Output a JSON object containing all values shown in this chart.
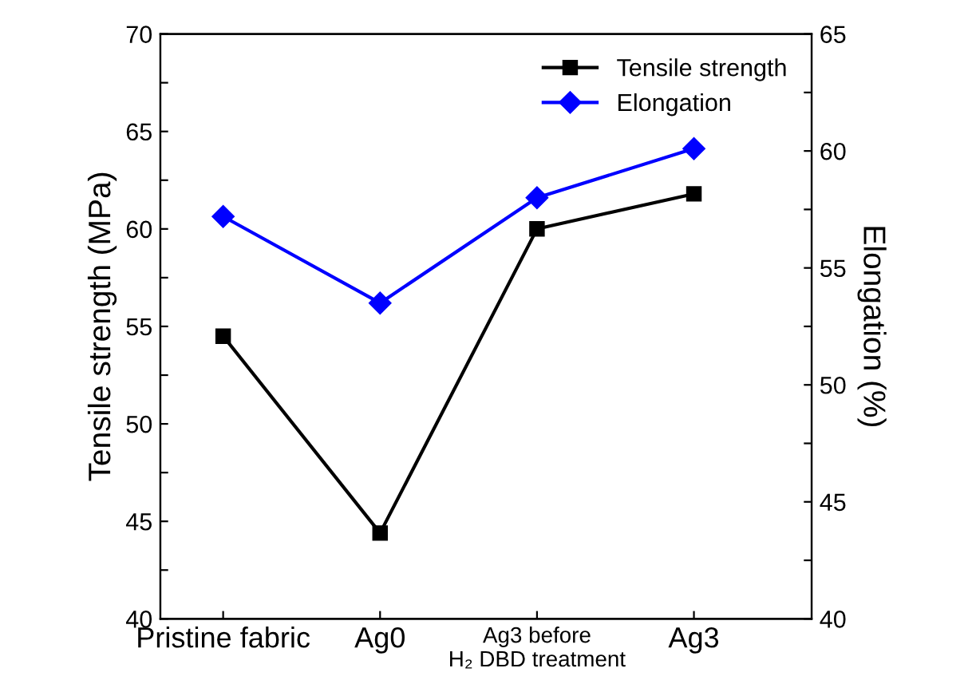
{
  "chart_data": {
    "type": "line",
    "ylabel": "Tensile strength (MPa)",
    "y2label": "Elongation (%)",
    "categories": [
      "Pristine fabric",
      "Ag0",
      "Ag3 before\nH₂ DBD treatment",
      "Ag3"
    ],
    "series": [
      {
        "name": "Tensile strength",
        "color": "#000000",
        "marker": "square",
        "values": [
          54.5,
          44.4,
          60.0,
          61.8
        ]
      },
      {
        "name": "Elongation",
        "color": "#0000ff",
        "marker": "diamond",
        "axis": "y2",
        "values": [
          57.2,
          53.5,
          58.0,
          60.1
        ]
      }
    ],
    "ylim": [
      40,
      70
    ],
    "yticks": [
      40,
      {
        "value": 42.5,
        "label": null
      },
      45,
      {
        "value": 47.5,
        "label": null
      },
      50,
      {
        "value": 52.5,
        "label": null
      },
      55,
      {
        "value": 57.5,
        "label": null
      },
      60,
      {
        "value": 62.5,
        "label": null
      },
      65,
      {
        "value": 67.5,
        "label": null
      },
      70
    ],
    "y2lim": [
      40,
      65
    ],
    "y2ticks": [
      40,
      {
        "value": 42.5,
        "label": null
      },
      45,
      {
        "value": 47.5,
        "label": null
      },
      50,
      {
        "value": 52.5,
        "label": null
      },
      55,
      {
        "value": 57.5,
        "label": null
      },
      60,
      {
        "value": 62.5,
        "label": null
      },
      65
    ],
    "legend": "top right",
    "grid": false,
    "line_style": "solid"
  }
}
